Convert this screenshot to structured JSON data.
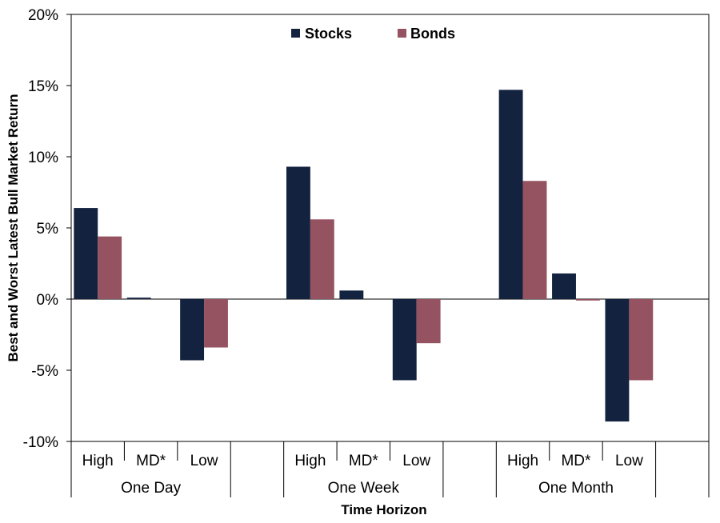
{
  "chart_data": {
    "type": "bar",
    "ylabel": "Best and Worst Latest Bull Market Return",
    "xlabel": "Time Horizon",
    "ylim": [
      -10,
      20
    ],
    "y_ticks": [
      "-10%",
      "-5%",
      "0%",
      "5%",
      "10%",
      "15%",
      "20%"
    ],
    "groups": [
      "One Day",
      "One Week",
      "One Month"
    ],
    "subcategories": [
      "High",
      "MD*",
      "Low"
    ],
    "legend_position": "top-center",
    "grid": false,
    "series": [
      {
        "name": "Stocks",
        "color": "#13223f",
        "values": [
          [
            6.4,
            0.1,
            -4.3
          ],
          [
            9.3,
            0.6,
            -5.7
          ],
          [
            14.7,
            1.8,
            -8.6
          ]
        ]
      },
      {
        "name": "Bonds",
        "color": "#955260",
        "values": [
          [
            4.4,
            0.0,
            -3.4
          ],
          [
            5.6,
            0.0,
            -3.1
          ],
          [
            8.3,
            -0.1,
            -5.7
          ]
        ]
      }
    ]
  }
}
